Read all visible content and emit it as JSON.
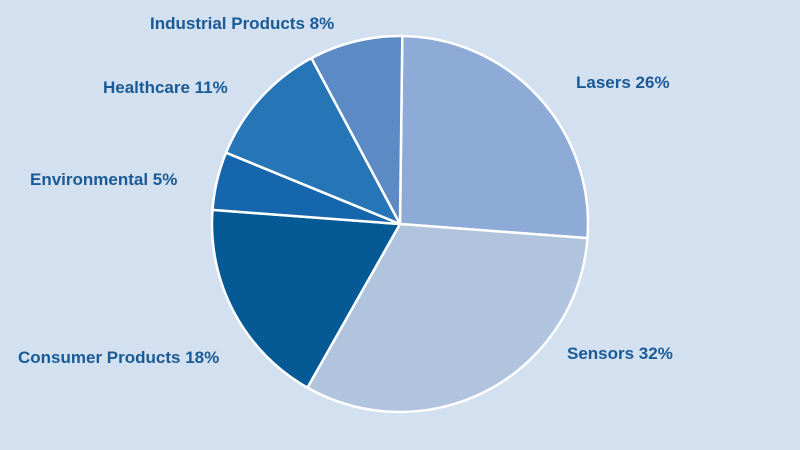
{
  "chart_data": {
    "type": "pie",
    "start_angle_deg": 0.7,
    "direction": "clockwise",
    "background": "#d3e0ef",
    "slice_border": "#ffffff",
    "label_color": "#1a5a96",
    "slices": [
      {
        "name": "Lasers",
        "value": 26,
        "label": "Lasers 26%",
        "color": "#8eaad7"
      },
      {
        "name": "Sensors",
        "value": 32,
        "label": "Sensors 32%",
        "color": "#b0c4de"
      },
      {
        "name": "Consumer Products",
        "value": 18,
        "label": "Consumer Products 18%",
        "color": "#055a96"
      },
      {
        "name": "Environmental",
        "value": 5,
        "label": "Environmental 5%",
        "color": "#1566ac"
      },
      {
        "name": "Healthcare",
        "value": 11,
        "label": "Healthcare 11%",
        "color": "#2676b7"
      },
      {
        "name": "Industrial Products",
        "value": 8,
        "label": "Industrial Products 8%",
        "color": "#5b8ac4"
      }
    ]
  }
}
